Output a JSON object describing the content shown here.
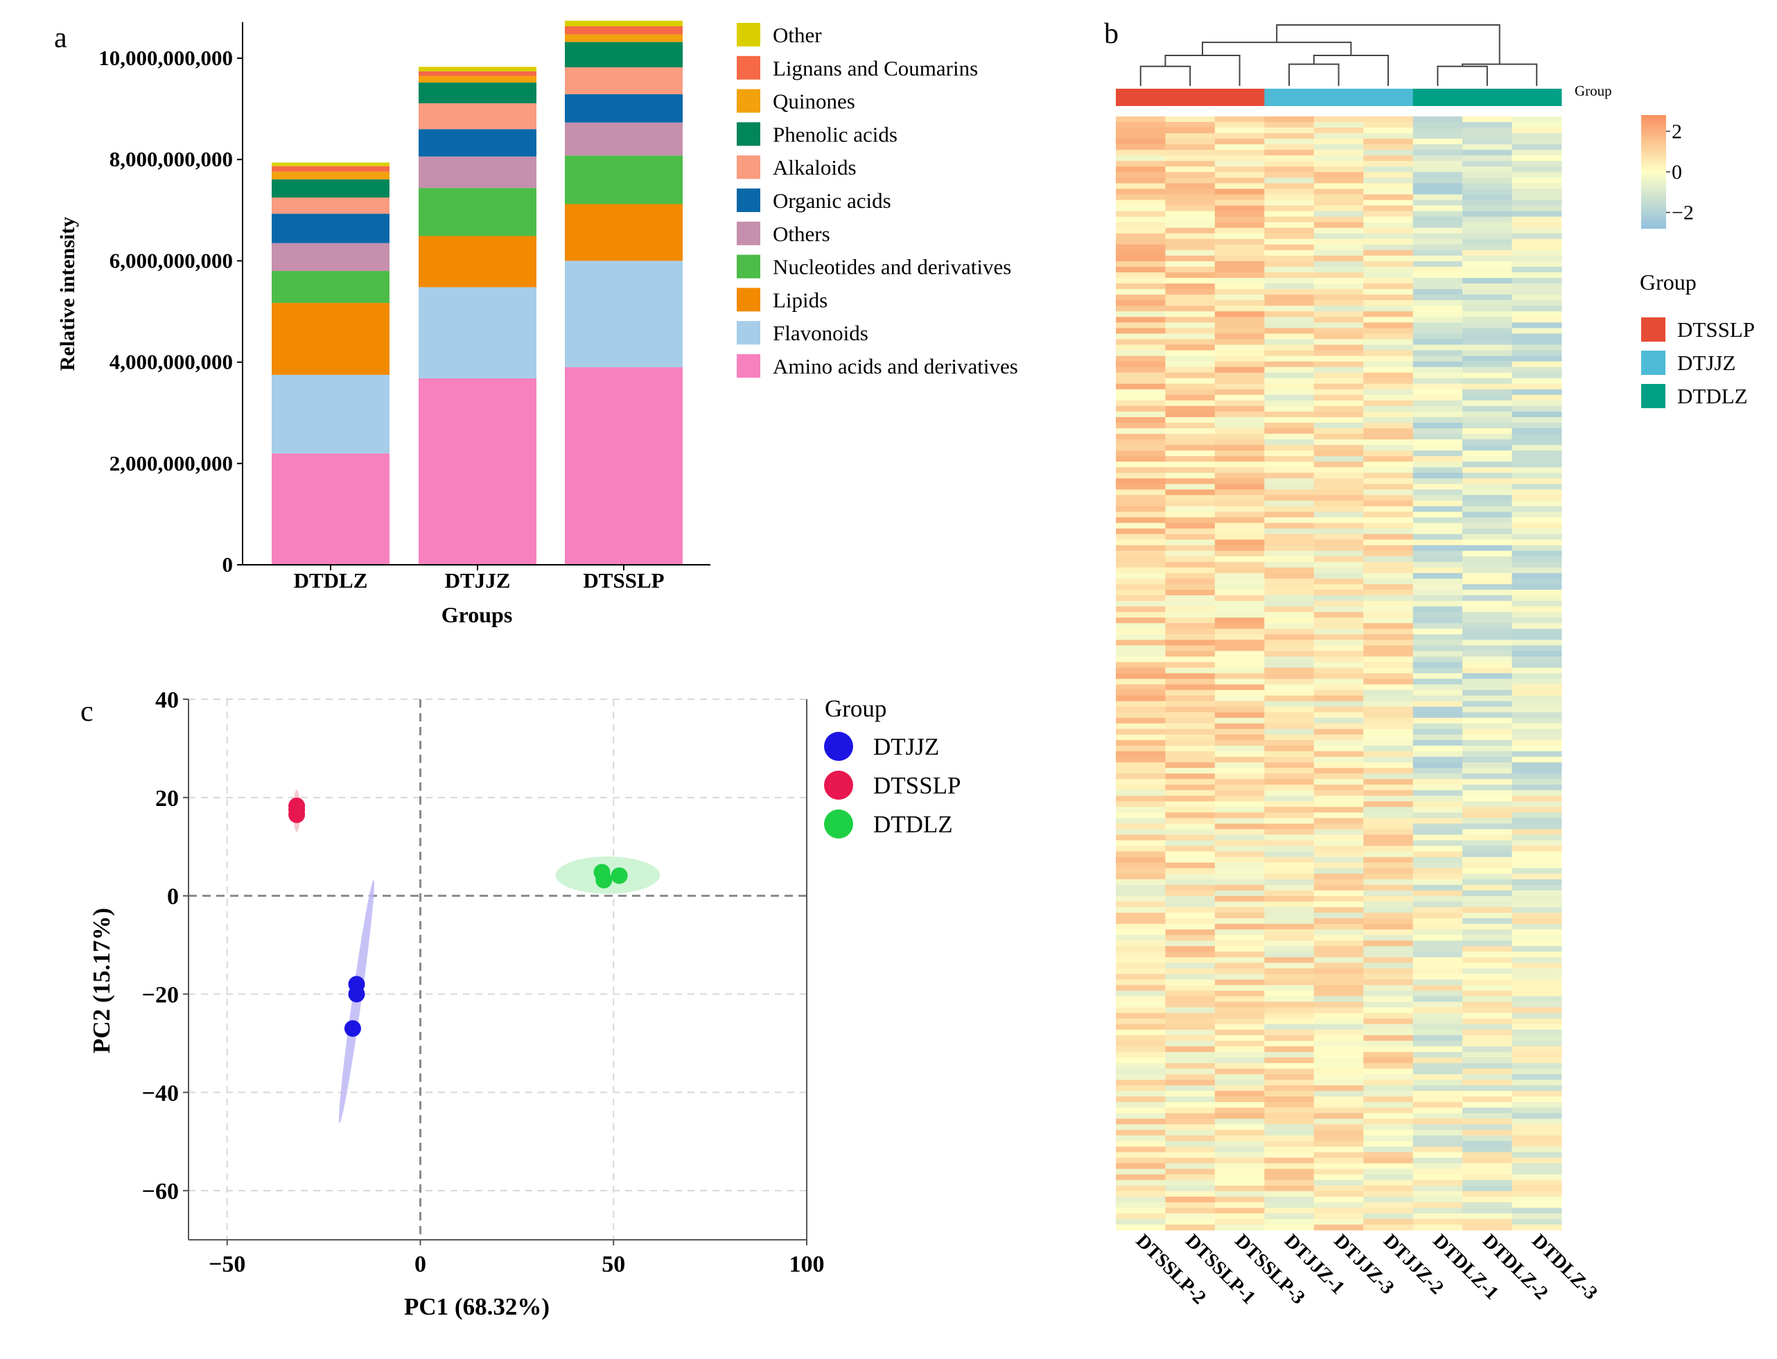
{
  "panel_labels": {
    "a": "a",
    "b": "b",
    "c": "c"
  },
  "chart_data": [
    {
      "type": "bar",
      "stacked": true,
      "panel": "a",
      "title": "",
      "xlabel": "Groups",
      "ylabel": "Relative intensity",
      "categories": [
        "DTDLZ",
        "DTJJZ",
        "DTSSLP"
      ],
      "ylim": [
        0,
        10700000000
      ],
      "yticks": [
        0,
        2000000000,
        4000000000,
        6000000000,
        8000000000,
        10000000000
      ],
      "ytick_labels": [
        "0",
        "2,000,000,000",
        "4,000,000,000",
        "6,000,000,000",
        "8,000,000,000",
        "10,000,000,000"
      ],
      "legend_position": "right",
      "series": [
        {
          "name": "Amino acids and derivatives",
          "color": "#F781BF",
          "values": [
            2200000000,
            3680000000,
            3900000000
          ]
        },
        {
          "name": "Flavonoids",
          "color": "#A6CEE9",
          "values": [
            1550000000,
            1800000000,
            2100000000
          ]
        },
        {
          "name": "Lipids",
          "color": "#F28A00",
          "values": [
            1420000000,
            1010000000,
            1120000000
          ]
        },
        {
          "name": "Nucleotides and derivatives",
          "color": "#4DBC48",
          "values": [
            630000000,
            950000000,
            960000000
          ]
        },
        {
          "name": "Others",
          "color": "#C68FAD",
          "values": [
            550000000,
            620000000,
            650000000
          ]
        },
        {
          "name": "Organic acids",
          "color": "#0A68A9",
          "values": [
            580000000,
            540000000,
            560000000
          ]
        },
        {
          "name": "Alkaloids",
          "color": "#F99C80",
          "values": [
            320000000,
            510000000,
            530000000
          ]
        },
        {
          "name": "Phenolic acids",
          "color": "#01865A",
          "values": [
            360000000,
            410000000,
            500000000
          ]
        },
        {
          "name": "Quinones",
          "color": "#F3A10C",
          "values": [
            150000000,
            130000000,
            150000000
          ]
        },
        {
          "name": "Lignans and Coumarins",
          "color": "#F56946",
          "values": [
            110000000,
            90000000,
            160000000
          ]
        },
        {
          "name": "Other",
          "color": "#D9CF00",
          "values": [
            70000000,
            90000000,
            110000000
          ]
        }
      ],
      "legend_order": [
        "Other",
        "Lignans and Coumarins",
        "Quinones",
        "Phenolic acids",
        "Alkaloids",
        "Organic acids",
        "Others",
        "Nucleotides and derivatives",
        "Lipids",
        "Flavonoids",
        "Amino acids and derivatives"
      ]
    },
    {
      "type": "heatmap",
      "panel": "b",
      "columns": [
        "DTSSLP-2",
        "DTSSLP-1",
        "DTSSLP-3",
        "DTJJZ-1",
        "DTJJZ-3",
        "DTJJZ-2",
        "DTDLZ-1",
        "DTDLZ-2",
        "DTDLZ-3"
      ],
      "column_groups": [
        "DTSSLP",
        "DTSSLP",
        "DTSSLP",
        "DTJJZ",
        "DTJJZ",
        "DTJJZ",
        "DTDLZ",
        "DTDLZ",
        "DTDLZ"
      ],
      "annotation_title": "Group",
      "row_count": 200,
      "clustered_rows": false,
      "clustered_columns": true,
      "dendrogram": {
        "labels": [
          "DTSSLP-2",
          "DTSSLP-1",
          "DTSSLP-3",
          "DTJJZ-1",
          "DTJJZ-3",
          "DTJJZ-2",
          "DTDLZ-1",
          "DTDLZ-2",
          "DTDLZ-3"
        ],
        "merges": [
          [
            0,
            1,
            0.45
          ],
          [
            3,
            4,
            0.5
          ],
          [
            6,
            7,
            0.45
          ],
          [
            9,
            2,
            0.7
          ],
          [
            10,
            5,
            0.7
          ],
          [
            11,
            8,
            0.5
          ],
          [
            12,
            13,
            1.0
          ],
          [
            15,
            14,
            1.4
          ]
        ]
      },
      "colorbar": {
        "min": -2.8,
        "max": 2.8,
        "ticks": [
          2,
          0,
          -2
        ],
        "tick_labels": [
          "2",
          "0",
          "−2"
        ],
        "colors": [
          "#92C0DD",
          "#FFFEC6",
          "#F8915F"
        ]
      },
      "legend": {
        "title": "Group",
        "entries": [
          {
            "name": "DTSSLP",
            "color": "#E64B35"
          },
          {
            "name": "DTJJZ",
            "color": "#4DBBD5"
          },
          {
            "name": "DTDLZ",
            "color": "#00A087"
          }
        ]
      }
    },
    {
      "type": "scatter",
      "panel": "c",
      "xlabel": "PC1 (68.32%)",
      "ylabel": "PC2 (15.17%)",
      "xlim": [
        -60,
        100
      ],
      "ylim": [
        -70,
        40
      ],
      "xticks": [
        -50,
        0,
        50,
        100
      ],
      "xtick_labels": [
        "−50",
        "0",
        "50",
        "100"
      ],
      "yticks": [
        40,
        20,
        0,
        -20,
        -40,
        -60
      ],
      "ytick_labels": [
        "40",
        "20",
        "0",
        "−20",
        "−40",
        "−60"
      ],
      "grid": true,
      "legend_title": "Group",
      "legend_position": "right",
      "series": [
        {
          "name": "DTJJZ",
          "color": "#1C14E3",
          "x": [
            -16.5,
            -16.5,
            -17.5
          ],
          "y": [
            -18,
            -20,
            -27
          ],
          "ellipse": {
            "center": [
              -16.5,
              -21.5
            ],
            "semi_major": 25,
            "semi_minor": 1.2,
            "angle_deg": 82,
            "fill": "#BDB7F5"
          }
        },
        {
          "name": "DTSSLP",
          "color": "#E8174F",
          "x": [
            -32,
            -32,
            -32
          ],
          "y": [
            18.3,
            17.5,
            16.5
          ],
          "ellipse": {
            "center": [
              -32,
              17.3
            ],
            "semi_major": 4.3,
            "semi_minor": 0.9,
            "angle_deg": 90,
            "fill": "#F7C0C8"
          }
        },
        {
          "name": "DTDLZ",
          "color": "#1DD046",
          "x": [
            47,
            47.5,
            51.5
          ],
          "y": [
            4.8,
            3.2,
            4.1
          ],
          "ellipse": {
            "center": [
              48.5,
              4.2
            ],
            "semi_major": 13.5,
            "semi_minor": 3.8,
            "angle_deg": 0,
            "fill": "#C5F2CE"
          }
        }
      ]
    }
  ]
}
